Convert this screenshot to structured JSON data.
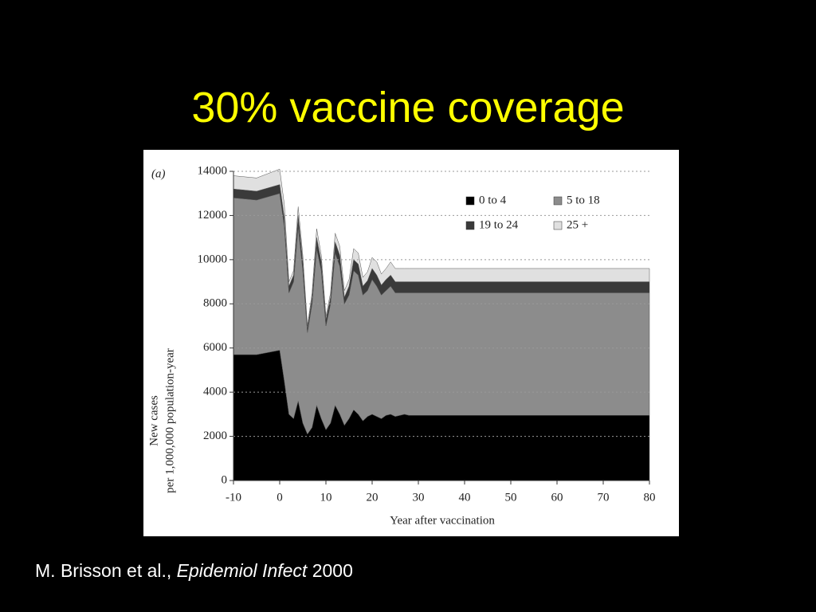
{
  "title": "30% vaccine coverage",
  "citation": {
    "authors": "M. Brisson et al.,",
    "journal": "Epidemiol Infect",
    "year": "2000"
  },
  "chart_data": {
    "type": "stacked_area",
    "panel_label": "(a)",
    "xlabel": "Year after vaccination",
    "ylabel": [
      "New cases",
      "per 1,000,000 population-year"
    ],
    "x": [
      -10,
      -5,
      0,
      1,
      2,
      3,
      4,
      5,
      6,
      7,
      8,
      9,
      10,
      11,
      12,
      13,
      14,
      15,
      16,
      17,
      18,
      19,
      20,
      21,
      22,
      23,
      24,
      25,
      26,
      27,
      28,
      30,
      35,
      40,
      50,
      60,
      70,
      80
    ],
    "series": [
      {
        "name": "0 to 4",
        "color": "#000000",
        "values": [
          5700,
          5700,
          5900,
          4500,
          3000,
          2800,
          3600,
          2600,
          2100,
          2400,
          3400,
          2800,
          2300,
          2600,
          3400,
          3000,
          2500,
          2800,
          3200,
          3000,
          2700,
          2900,
          3000,
          2900,
          2800,
          2950,
          3000,
          2900,
          2950,
          3000,
          2950,
          2950,
          2950,
          2950,
          2950,
          2950,
          2950,
          2950
        ]
      },
      {
        "name": "5 to 18",
        "color": "#8c8c8c",
        "values": [
          7100,
          7000,
          7100,
          7000,
          5500,
          6200,
          7900,
          6900,
          4600,
          5600,
          7100,
          6700,
          4700,
          5400,
          6900,
          6700,
          5500,
          5600,
          6300,
          6300,
          5700,
          5700,
          6100,
          5900,
          5600,
          5650,
          5800,
          5600,
          5550,
          5500,
          5550,
          5550,
          5550,
          5550,
          5550,
          5550,
          5550,
          5550
        ]
      },
      {
        "name": "19 to 24",
        "color": "#3a3a3a",
        "values": [
          400,
          400,
          400,
          400,
          300,
          300,
          500,
          400,
          200,
          300,
          500,
          400,
          300,
          300,
          500,
          500,
          300,
          400,
          500,
          500,
          400,
          450,
          500,
          500,
          450,
          500,
          500,
          500,
          500,
          500,
          500,
          500,
          500,
          500,
          500,
          500,
          500,
          500
        ]
      },
      {
        "name": "25 +",
        "color": "#e0e0e0",
        "values": [
          600,
          600,
          700,
          600,
          200,
          200,
          400,
          300,
          100,
          200,
          400,
          300,
          150,
          200,
          400,
          400,
          300,
          300,
          500,
          500,
          400,
          400,
          500,
          600,
          500,
          500,
          600,
          600,
          600,
          600,
          600,
          600,
          600,
          600,
          600,
          600,
          600,
          600
        ]
      }
    ],
    "xlim": [
      -10,
      80
    ],
    "xticks": [
      -10,
      0,
      10,
      20,
      30,
      40,
      50,
      60,
      70,
      80
    ],
    "ylim": [
      0,
      14000
    ],
    "yticks": [
      0,
      2000,
      4000,
      6000,
      8000,
      10000,
      12000,
      14000
    ],
    "grid": true
  }
}
